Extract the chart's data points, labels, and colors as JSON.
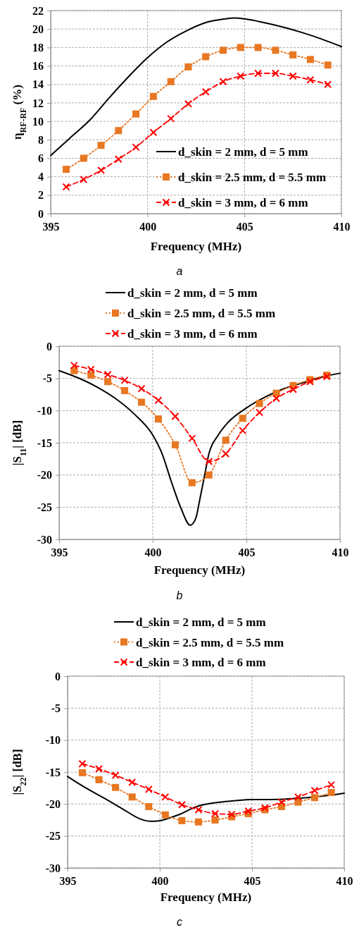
{
  "chart_data": [
    {
      "type": "line",
      "xlabel": "Frequency (MHz)",
      "ylabel": "η$_{RF-RF}$ (%)",
      "xlim": [
        395,
        410
      ],
      "xticks": [
        395,
        400,
        405,
        410
      ],
      "ylim": [
        0,
        22
      ],
      "yticks": [
        0,
        2,
        4,
        6,
        8,
        10,
        12,
        14,
        16,
        18,
        20,
        22
      ],
      "grid": true,
      "legend": "bottom right",
      "annotations": [
        "a"
      ],
      "series": [
        {
          "name": "d_skin = 2 mm, d = 5 mm",
          "color": "#000000",
          "marker": "none",
          "line_style": "solid",
          "x": [
            395,
            396,
            397,
            398,
            399,
            400,
            401,
            402,
            403,
            404,
            404.5,
            405,
            406,
            407,
            408,
            409,
            410
          ],
          "values": [
            6.3,
            8.2,
            10.1,
            12.5,
            14.8,
            16.9,
            18.6,
            19.8,
            20.7,
            21.1,
            21.2,
            21.1,
            20.7,
            20.2,
            19.6,
            18.9,
            18.1
          ]
        },
        {
          "name": "d_skin = 2.5 mm, d = 5.5 mm",
          "color": "#e87722",
          "marker": "square",
          "line_style": "dotted",
          "x": [
            395.8,
            396.7,
            397.6,
            398.5,
            399.4,
            400.3,
            401.2,
            402.1,
            403.0,
            403.9,
            404.8,
            405.7,
            406.6,
            407.5,
            408.4,
            409.3
          ],
          "values": [
            4.8,
            6.0,
            7.4,
            9.0,
            10.8,
            12.7,
            14.3,
            15.9,
            17.0,
            17.7,
            18.0,
            18.0,
            17.7,
            17.2,
            16.7,
            16.1
          ]
        },
        {
          "name": "d_skin = 3 mm, d = 6 mm",
          "color": "#ff0000",
          "marker": "cross",
          "line_style": "dashed",
          "x": [
            395.8,
            396.7,
            397.6,
            398.5,
            399.4,
            400.3,
            401.2,
            402.1,
            403.0,
            403.9,
            404.8,
            405.7,
            406.6,
            407.5,
            408.4,
            409.3
          ],
          "values": [
            2.9,
            3.7,
            4.7,
            5.9,
            7.2,
            8.8,
            10.3,
            11.9,
            13.2,
            14.3,
            14.9,
            15.2,
            15.2,
            14.9,
            14.5,
            14.0
          ]
        }
      ]
    },
    {
      "type": "line",
      "xlabel": "Frequency (MHz)",
      "ylabel": "|S$_{11}$| [dB]",
      "xlim": [
        395,
        410
      ],
      "xticks": [
        395,
        400,
        405,
        410
      ],
      "ylim": [
        -30,
        0
      ],
      "yticks": [
        -30,
        -25,
        -20,
        -15,
        -10,
        -5,
        0
      ],
      "grid": true,
      "legend": "top",
      "annotations": [
        "b"
      ],
      "series": [
        {
          "name": "d_skin = 2 mm, d = 5 mm",
          "color": "#000000",
          "marker": "none",
          "line_style": "solid",
          "x": [
            395,
            396,
            397,
            398,
            399,
            400,
            400.5,
            401,
            401.5,
            402,
            402.3,
            402.5,
            402.8,
            403,
            403.5,
            404,
            405,
            406,
            407,
            408,
            409,
            410
          ],
          "values": [
            -3.8,
            -4.9,
            -6.3,
            -8.1,
            -10.5,
            -13.8,
            -16.7,
            -21.1,
            -25.1,
            -27.8,
            -26.7,
            -24.0,
            -19.6,
            -16.7,
            -13.8,
            -11.9,
            -9.6,
            -7.9,
            -6.6,
            -5.7,
            -4.8,
            -4.2
          ]
        },
        {
          "name": "d_skin = 2.5 mm, d = 5.5 mm",
          "color": "#e87722",
          "marker": "square",
          "line_style": "dotted",
          "x": [
            395.8,
            396.7,
            397.6,
            398.5,
            399.4,
            400.3,
            401.2,
            402.1,
            403.0,
            403.9,
            404.8,
            405.7,
            406.6,
            407.5,
            408.4,
            409.3
          ],
          "values": [
            -3.8,
            -4.5,
            -5.5,
            -6.9,
            -8.7,
            -11.3,
            -15.3,
            -21.2,
            -20.0,
            -14.6,
            -11.2,
            -8.9,
            -7.3,
            -6.1,
            -5.2,
            -4.5
          ]
        },
        {
          "name": "d_skin = 3 mm, d = 6 mm",
          "color": "#ff0000",
          "marker": "cross",
          "line_style": "dashed",
          "x": [
            395.8,
            396.7,
            397.6,
            398.5,
            399.4,
            400.3,
            401.2,
            402.1,
            403.0,
            403.9,
            404.8,
            405.7,
            406.6,
            407.5,
            408.4,
            409.3
          ],
          "values": [
            -3.0,
            -3.6,
            -4.4,
            -5.3,
            -6.6,
            -8.4,
            -10.9,
            -14.3,
            -17.9,
            -16.7,
            -13.1,
            -10.3,
            -8.1,
            -6.7,
            -5.5,
            -4.7
          ]
        }
      ]
    },
    {
      "type": "line",
      "xlabel": "Frequency (MHz)",
      "ylabel": "|S$_{22}$| [dB]",
      "xlim": [
        395,
        410
      ],
      "xticks": [
        395,
        400,
        405,
        410
      ],
      "ylim": [
        -30,
        0
      ],
      "yticks": [
        -30,
        -25,
        -20,
        -15,
        -10,
        -5,
        0
      ],
      "grid": true,
      "legend": "top",
      "annotations": [
        "c"
      ],
      "series": [
        {
          "name": "d_skin = 2 mm, d = 5 mm",
          "color": "#000000",
          "marker": "none",
          "line_style": "solid",
          "x": [
            395,
            396,
            397,
            398,
            399,
            399.5,
            400,
            400.5,
            401,
            402,
            403,
            404,
            405,
            406,
            407,
            408,
            409,
            410
          ],
          "values": [
            -15.7,
            -17.5,
            -19.1,
            -20.8,
            -22.4,
            -22.7,
            -22.6,
            -22.2,
            -21.7,
            -20.4,
            -19.8,
            -19.5,
            -19.3,
            -19.3,
            -19.2,
            -19.0,
            -18.7,
            -18.3
          ]
        },
        {
          "name": "d_skin = 2.5 mm, d = 5.5 mm",
          "color": "#e87722",
          "marker": "square",
          "line_style": "dotted",
          "x": [
            395.8,
            396.7,
            397.6,
            398.5,
            399.4,
            400.3,
            401.2,
            402.1,
            403.0,
            403.9,
            404.8,
            405.7,
            406.6,
            407.5,
            408.4,
            409.3
          ],
          "values": [
            -15.1,
            -16.2,
            -17.4,
            -18.9,
            -20.4,
            -21.7,
            -22.6,
            -22.8,
            -22.5,
            -22.0,
            -21.5,
            -20.9,
            -20.4,
            -19.7,
            -19.0,
            -18.2
          ]
        },
        {
          "name": "d_skin = 3 mm, d = 6 mm",
          "color": "#ff0000",
          "marker": "cross",
          "line_style": "dashed",
          "x": [
            395.8,
            396.7,
            397.6,
            398.5,
            399.4,
            400.3,
            401.2,
            402.1,
            403.0,
            403.9,
            404.8,
            405.7,
            406.6,
            407.5,
            408.4,
            409.3
          ],
          "values": [
            -13.7,
            -14.5,
            -15.5,
            -16.6,
            -17.7,
            -18.9,
            -20.1,
            -20.9,
            -21.5,
            -21.6,
            -21.1,
            -20.6,
            -19.7,
            -18.9,
            -17.9,
            -17.0
          ]
        }
      ]
    }
  ]
}
